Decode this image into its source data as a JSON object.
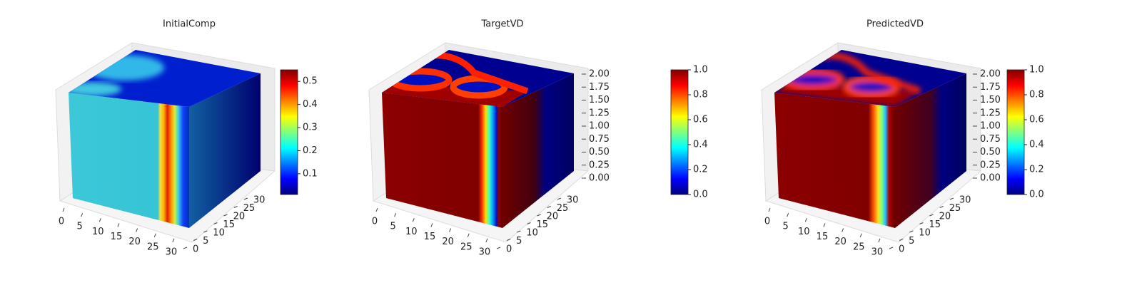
{
  "chart_data": [
    {
      "type": "voxel",
      "title": "InitialComp",
      "colormap": "jet",
      "xlim": [
        0,
        32
      ],
      "xticks": [
        0,
        5,
        10,
        15,
        20,
        25,
        30
      ],
      "ylim": [
        0,
        32
      ],
      "yticks": [
        0,
        5,
        10,
        15,
        20,
        25,
        30
      ],
      "clim": [
        0.01,
        0.55
      ],
      "cticks": [
        0.1,
        0.2,
        0.3,
        0.4,
        0.5
      ]
    },
    {
      "type": "voxel",
      "title": "TargetVD",
      "colormap": "jet",
      "xlim": [
        0,
        32
      ],
      "xticks": [
        0,
        5,
        10,
        15,
        20,
        25,
        30
      ],
      "ylim": [
        0,
        32
      ],
      "yticks": [
        0,
        5,
        10,
        15,
        20,
        25,
        30
      ],
      "zlim": [
        0,
        2
      ],
      "zticks": [
        {
          "value": 0,
          "label": "0.00"
        },
        0.25,
        {
          "value": 0.5,
          "label": "0.50"
        },
        0.75,
        {
          "value": 1,
          "label": "1.00"
        },
        1.25,
        {
          "value": 1.5,
          "label": "1.50"
        },
        1.75,
        {
          "value": 2,
          "label": "2.00"
        }
      ],
      "clim": [
        0,
        1
      ],
      "cticks": [
        {
          "value": 0,
          "label": "0.0"
        },
        0.2,
        0.4,
        0.6,
        0.8,
        {
          "value": 1,
          "label": "1.0"
        }
      ]
    },
    {
      "type": "voxel",
      "title": "PredictedVD",
      "colormap": "jet",
      "xlim": [
        0,
        32
      ],
      "xticks": [
        0,
        5,
        10,
        15,
        20,
        25,
        30
      ],
      "ylim": [
        0,
        32
      ],
      "yticks": [
        0,
        5,
        10,
        15,
        20,
        25,
        30
      ],
      "zlim": [
        0,
        2
      ],
      "zticks": [
        {
          "value": 0,
          "label": "0.00"
        },
        0.25,
        {
          "value": 0.5,
          "label": "0.50"
        },
        0.75,
        {
          "value": 1,
          "label": "1.00"
        },
        1.25,
        {
          "value": 1.5,
          "label": "1.50"
        },
        1.75,
        {
          "value": 2,
          "label": "2.00"
        }
      ],
      "clim": [
        0,
        1
      ],
      "cticks": [
        {
          "value": 0,
          "label": "0.0"
        },
        0.2,
        0.4,
        0.6,
        0.8,
        {
          "value": 1,
          "label": "1.0"
        }
      ]
    }
  ]
}
